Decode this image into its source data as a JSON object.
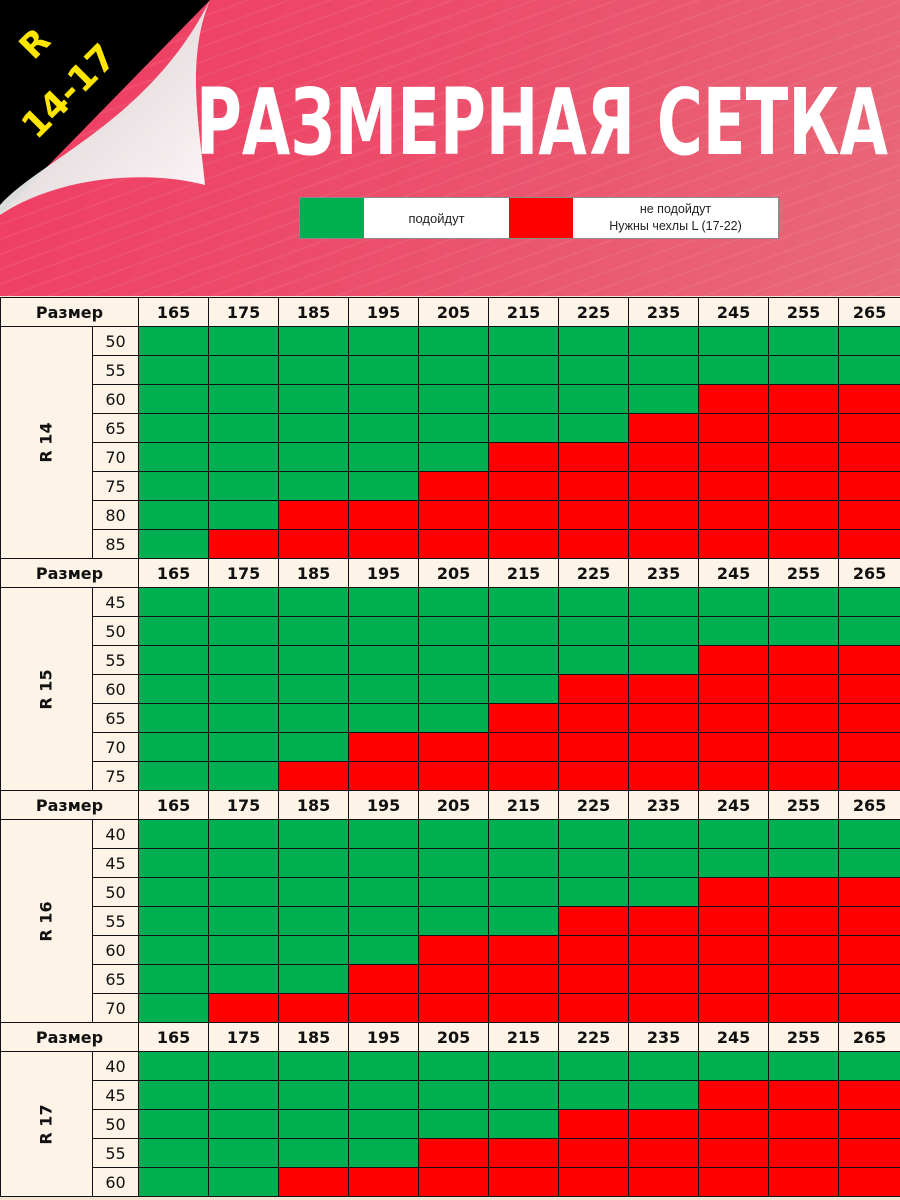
{
  "badge": {
    "r": "R",
    "range": "14-17"
  },
  "title": "РАЗМЕРНАЯ СЕТКА",
  "legend": {
    "fit_label": "подойдут",
    "nofit_line1": "не подойдут",
    "nofit_line2": "Нужны чехлы L (17-22)",
    "fit_color": "#00b050",
    "nofit_color": "#ff0000"
  },
  "widths": [
    "165",
    "175",
    "185",
    "195",
    "205",
    "215",
    "225",
    "235",
    "245",
    "255",
    "265"
  ],
  "size_label": "Размер",
  "sections": [
    {
      "name": "R 14",
      "rows": [
        {
          "profile": "50",
          "fit_count": 11
        },
        {
          "profile": "55",
          "fit_count": 11
        },
        {
          "profile": "60",
          "fit_count": 8
        },
        {
          "profile": "65",
          "fit_count": 7
        },
        {
          "profile": "70",
          "fit_count": 5
        },
        {
          "profile": "75",
          "fit_count": 4
        },
        {
          "profile": "80",
          "fit_count": 2
        },
        {
          "profile": "85",
          "fit_count": 1
        }
      ]
    },
    {
      "name": "R 15",
      "rows": [
        {
          "profile": "45",
          "fit_count": 11
        },
        {
          "profile": "50",
          "fit_count": 11
        },
        {
          "profile": "55",
          "fit_count": 8
        },
        {
          "profile": "60",
          "fit_count": 6
        },
        {
          "profile": "65",
          "fit_count": 5
        },
        {
          "profile": "70",
          "fit_count": 3
        },
        {
          "profile": "75",
          "fit_count": 2
        }
      ]
    },
    {
      "name": "R 16",
      "rows": [
        {
          "profile": "40",
          "fit_count": 11
        },
        {
          "profile": "45",
          "fit_count": 11
        },
        {
          "profile": "50",
          "fit_count": 8
        },
        {
          "profile": "55",
          "fit_count": 6
        },
        {
          "profile": "60",
          "fit_count": 4
        },
        {
          "profile": "65",
          "fit_count": 3
        },
        {
          "profile": "70",
          "fit_count": 1
        }
      ]
    },
    {
      "name": "R 17",
      "rows": [
        {
          "profile": "40",
          "fit_count": 11
        },
        {
          "profile": "45",
          "fit_count": 8
        },
        {
          "profile": "50",
          "fit_count": 6
        },
        {
          "profile": "55",
          "fit_count": 4
        },
        {
          "profile": "60",
          "fit_count": 2
        }
      ]
    }
  ]
}
